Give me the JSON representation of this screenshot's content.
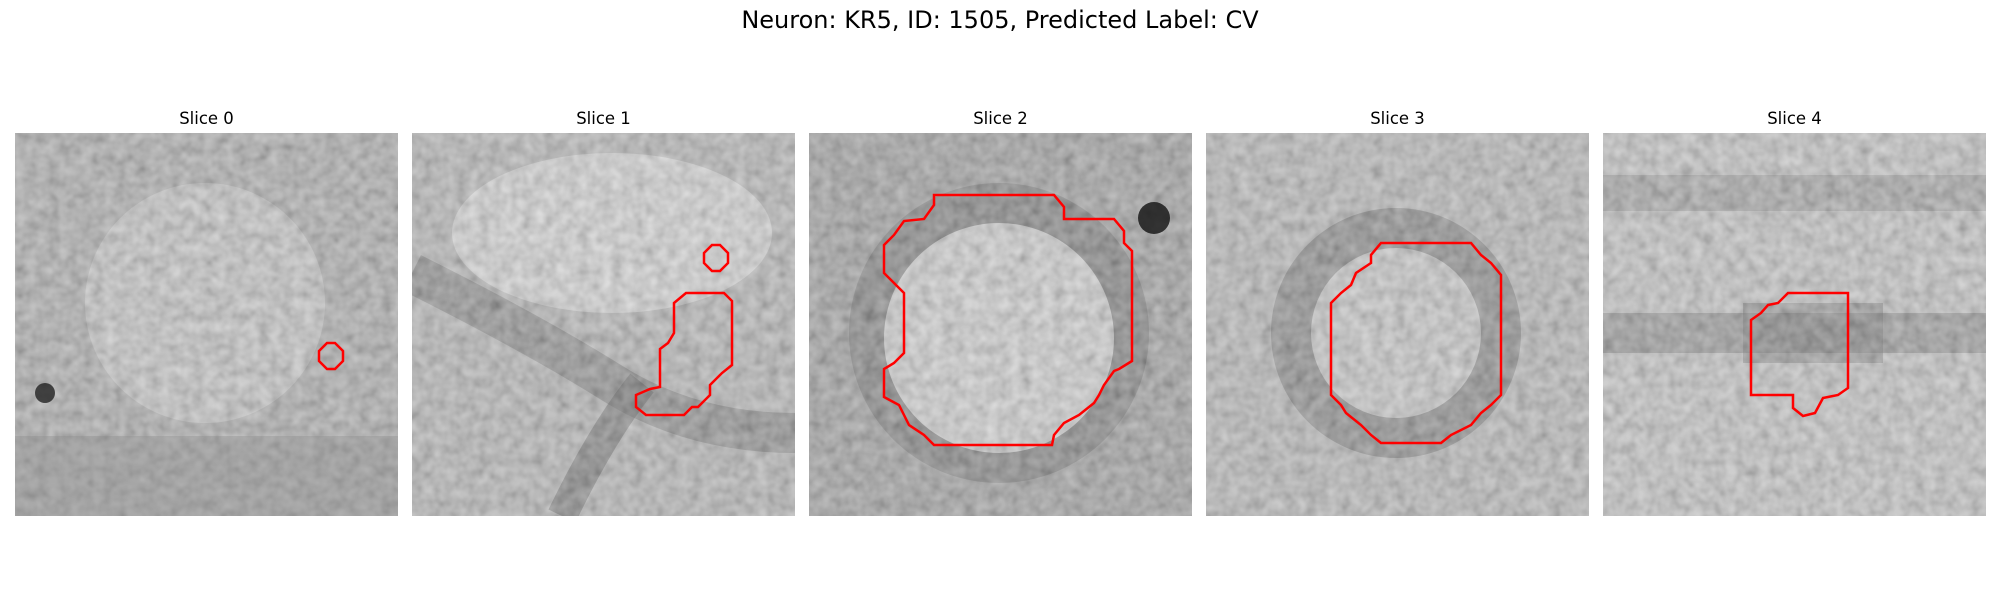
{
  "figure": {
    "title": "Neuron: KR5, ID: 1505, Predicted Label: CV",
    "contour_color": "#ff0000",
    "colormap": "grayscale"
  },
  "slices": [
    {
      "title": "Slice 0"
    },
    {
      "title": "Slice 1"
    },
    {
      "title": "Slice 2"
    },
    {
      "title": "Slice 3"
    },
    {
      "title": "Slice 4"
    }
  ]
}
